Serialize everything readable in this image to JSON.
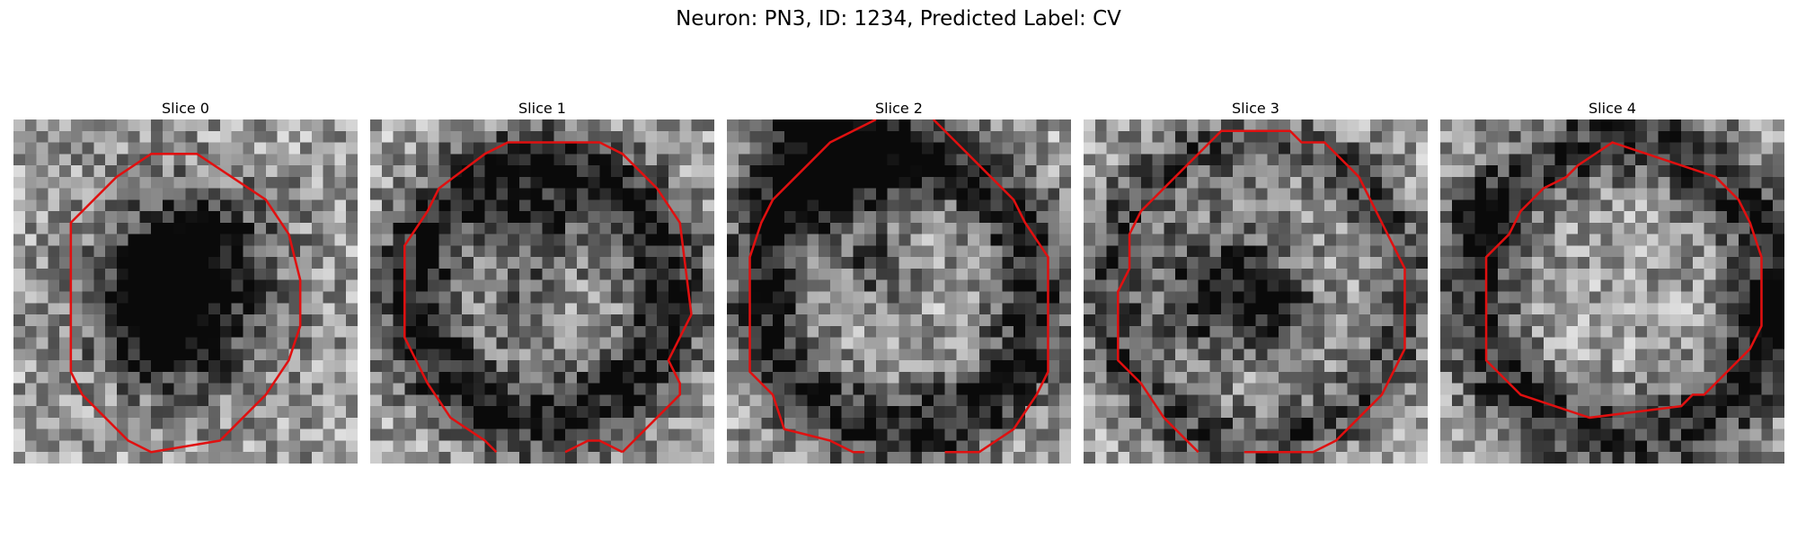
{
  "figure": {
    "suptitle": "Neuron: PN3, ID: 1234, Predicted Label: CV",
    "contour_color": "#e01010",
    "colormap": "grayscale",
    "grid_size": 30
  },
  "panels": [
    {
      "title": "Slice 0",
      "contour": [
        [
          16,
          3
        ],
        [
          19,
          5
        ],
        [
          22,
          7
        ],
        [
          24,
          10
        ],
        [
          25,
          14
        ],
        [
          25,
          18
        ],
        [
          24,
          21
        ],
        [
          22,
          24
        ],
        [
          20,
          26
        ],
        [
          18,
          28
        ],
        [
          12,
          29
        ],
        [
          10,
          28
        ],
        [
          8,
          26
        ],
        [
          6,
          24
        ],
        [
          5,
          22
        ],
        [
          5,
          18
        ],
        [
          5,
          9
        ],
        [
          6,
          8
        ],
        [
          9,
          5
        ],
        [
          12,
          3
        ]
      ],
      "contour_closed": true,
      "dark_spots": [
        [
          15,
          15,
          6,
          0.55
        ],
        [
          13,
          18,
          3,
          0.5
        ],
        [
          16,
          11,
          3,
          0.35
        ],
        [
          12,
          13,
          2,
          0.4
        ]
      ],
      "rings": []
    },
    {
      "title": "Slice 1",
      "contour": [
        [
          22,
          29
        ],
        [
          25,
          26
        ],
        [
          27,
          24
        ],
        [
          27,
          23
        ],
        [
          26,
          21
        ],
        [
          27,
          19
        ],
        [
          28,
          17
        ],
        [
          27,
          9
        ],
        [
          25,
          6
        ],
        [
          22,
          3
        ],
        [
          20,
          2
        ],
        [
          12,
          2
        ],
        [
          10,
          3
        ],
        [
          6,
          6
        ],
        [
          5,
          8
        ],
        [
          3,
          11
        ],
        [
          3,
          19
        ],
        [
          4,
          21
        ],
        [
          5,
          23
        ],
        [
          7,
          26
        ],
        [
          10,
          28
        ],
        [
          11,
          29
        ]
      ],
      "contour_closed": false,
      "contour_tail": [
        [
          17,
          29
        ],
        [
          19,
          28
        ],
        [
          20,
          28
        ],
        [
          22,
          29
        ]
      ],
      "dark_spots": [
        [
          15,
          10,
          3,
          0.35
        ],
        [
          13,
          17,
          2,
          0.3
        ]
      ],
      "rings": [
        [
          15,
          15,
          11,
          2.5,
          0.55
        ]
      ]
    },
    {
      "title": "Slice 2",
      "contour": [
        [
          18,
          0
        ],
        [
          20,
          2
        ],
        [
          22,
          4
        ],
        [
          25,
          7
        ],
        [
          26,
          9
        ],
        [
          28,
          12
        ],
        [
          28,
          22
        ],
        [
          27,
          24
        ],
        [
          25,
          27
        ],
        [
          22,
          29
        ],
        [
          19,
          29
        ]
      ],
      "contour_closed": false,
      "contour_tail": [
        [
          13,
          0
        ],
        [
          11,
          1
        ],
        [
          9,
          2
        ],
        [
          6,
          5
        ],
        [
          4,
          7
        ],
        [
          3,
          9
        ],
        [
          2,
          12
        ],
        [
          2,
          22
        ],
        [
          4,
          24
        ],
        [
          5,
          27
        ],
        [
          9,
          28
        ],
        [
          11,
          29
        ],
        [
          12,
          29
        ]
      ],
      "dark_spots": [
        [
          9,
          2,
          5,
          0.6
        ],
        [
          13,
          13,
          2,
          0.3
        ]
      ],
      "rings": [
        [
          15,
          15,
          12,
          2.5,
          0.5
        ]
      ]
    },
    {
      "title": "Slice 3",
      "contour": [
        [
          14,
          29
        ],
        [
          20,
          29
        ],
        [
          22,
          28
        ],
        [
          24,
          26
        ],
        [
          26,
          24
        ],
        [
          27,
          22
        ],
        [
          28,
          20
        ],
        [
          28,
          13
        ],
        [
          26,
          9
        ],
        [
          25,
          7
        ],
        [
          24,
          5
        ],
        [
          21,
          2
        ],
        [
          19,
          2
        ],
        [
          18,
          1
        ],
        [
          12,
          1
        ],
        [
          10,
          3
        ],
        [
          8,
          5
        ],
        [
          5,
          8
        ],
        [
          4,
          10
        ],
        [
          4,
          13
        ],
        [
          3,
          15
        ],
        [
          3,
          21
        ],
        [
          5,
          23
        ],
        [
          7,
          26
        ],
        [
          9,
          28
        ],
        [
          10,
          29
        ]
      ],
      "contour_closed": false,
      "dark_spots": [
        [
          12,
          15,
          4,
          0.55
        ],
        [
          17,
          16,
          2,
          0.4
        ]
      ],
      "rings": [
        [
          15,
          15,
          13,
          2,
          0.35
        ]
      ]
    },
    {
      "title": "Slice 4",
      "contour": [
        [
          15,
          2
        ],
        [
          18,
          3
        ],
        [
          21,
          4
        ],
        [
          24,
          5
        ],
        [
          26,
          7
        ],
        [
          27,
          9
        ],
        [
          28,
          12
        ],
        [
          28,
          18
        ],
        [
          27,
          20
        ],
        [
          25,
          22
        ],
        [
          23,
          24
        ],
        [
          22,
          24
        ],
        [
          21,
          25
        ],
        [
          13,
          26
        ],
        [
          10,
          25
        ],
        [
          7,
          24
        ],
        [
          5,
          22
        ],
        [
          4,
          21
        ],
        [
          4,
          14
        ],
        [
          4,
          12
        ],
        [
          6,
          10
        ],
        [
          7,
          8
        ],
        [
          8,
          7
        ],
        [
          9,
          6
        ],
        [
          11,
          5
        ],
        [
          12,
          4
        ],
        [
          15,
          2
        ]
      ],
      "contour_closed": true,
      "dark_spots": [
        [
          29,
          17,
          2,
          0.45
        ],
        [
          3,
          8,
          2,
          0.35
        ]
      ],
      "rings": [
        [
          16,
          15,
          13,
          2.5,
          0.45
        ]
      ]
    }
  ]
}
